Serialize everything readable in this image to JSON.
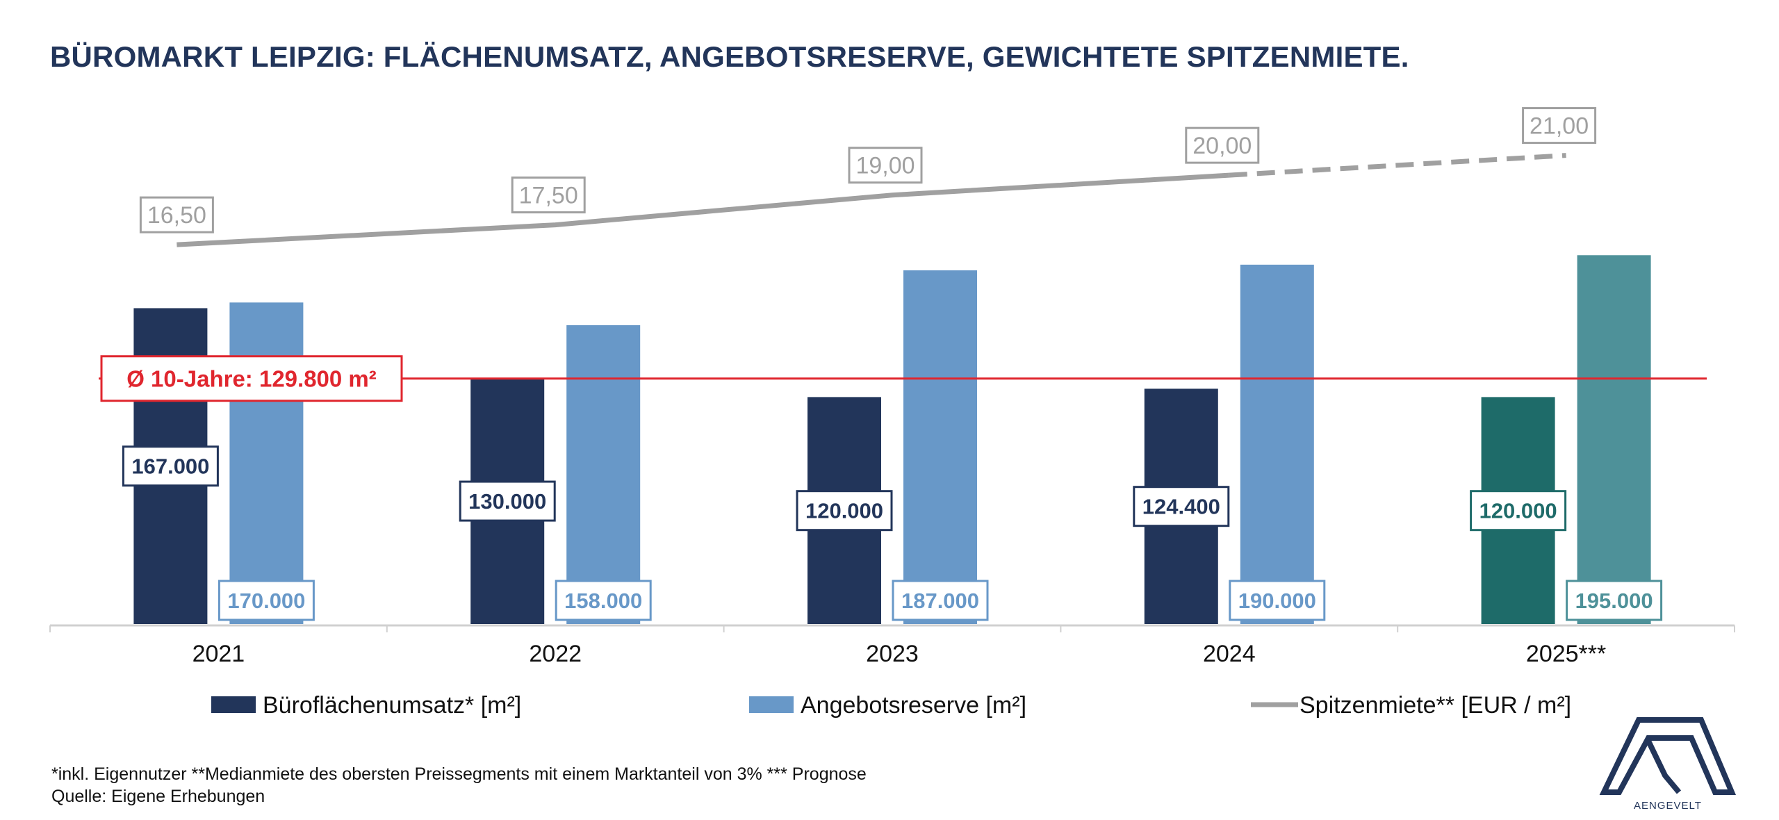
{
  "title": "BÜROMARKT LEIPZIG: FLÄCHENUMSATZ, ANGEBOTSRESERVE, GEWICHTETE SPITZENMIETE.",
  "footnote": {
    "line1": "*inkl. Eigennutzer **Medianmiete des obersten Preissegments mit einem Marktanteil von 3% *** Prognose",
    "line2": "Quelle: Eigene Erhebungen"
  },
  "logo_text": "AENGEVELT",
  "colors": {
    "umsatz": "#22355a",
    "reserve": "#6898c8",
    "umsatz_forecast": "#1e6b69",
    "reserve_forecast": "#4e9199",
    "miete": "#a0a0a0",
    "average": "#e0262e"
  },
  "chart_data": {
    "type": "bar",
    "categories": [
      "2021",
      "2022",
      "2023",
      "2024",
      "2025***"
    ],
    "forecast_index": 4,
    "ylim": [
      0,
      230000
    ],
    "series": [
      {
        "name": "Büroflächenumsatz* [m²]",
        "values": [
          167000,
          130000,
          120000,
          124400,
          120000
        ],
        "labels": [
          "167.000",
          "130.000",
          "120.000",
          "124.400",
          "120.000"
        ]
      },
      {
        "name": "Angebotsreserve [m²]",
        "values": [
          170000,
          158000,
          187000,
          190000,
          195000
        ],
        "labels": [
          "170.000",
          "158.000",
          "187.000",
          "190.000",
          "195.000"
        ]
      }
    ],
    "line_series": {
      "name": "Spitzenmiete** [EUR / m²]",
      "values": [
        16.5,
        17.5,
        19.0,
        20.0,
        21.0
      ],
      "labels": [
        "16,50",
        "17,50",
        "19,00",
        "20,00",
        "21,00"
      ],
      "dashed_from_index": 3
    },
    "reference_line": {
      "label": "Ø 10-Jahre: 129.800 m²",
      "value": 129800
    },
    "legend_position": "bottom",
    "grid": false
  }
}
